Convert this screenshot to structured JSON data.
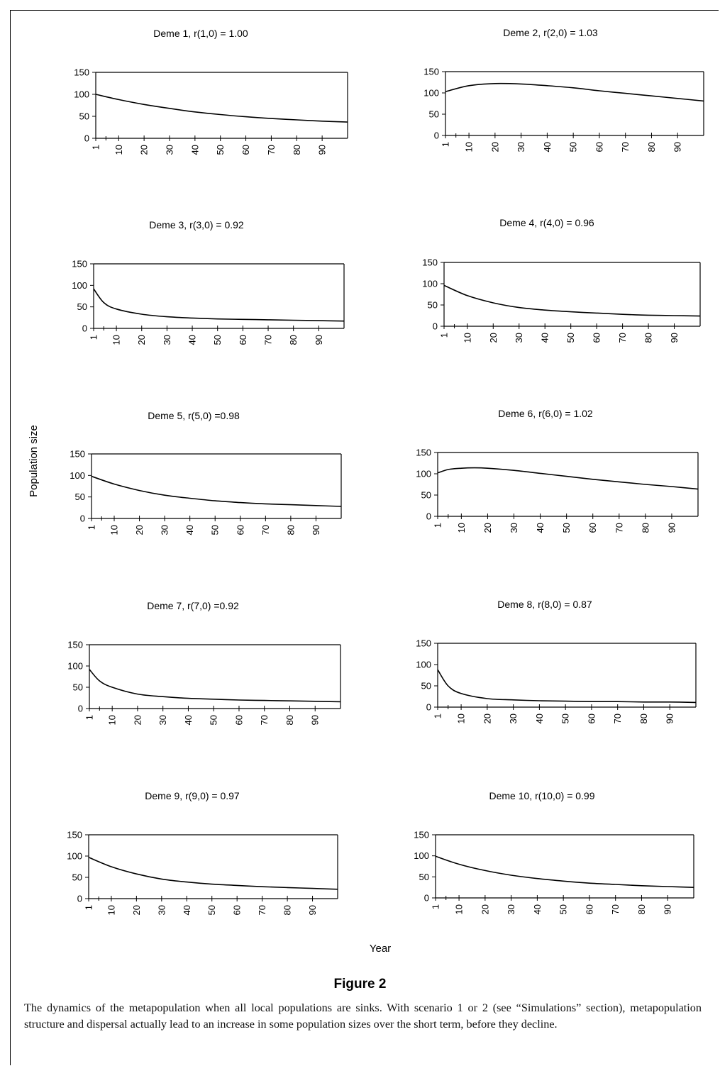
{
  "figure": {
    "title": "Figure 2",
    "caption": "The dynamics of the metapopulation when all local populations are sinks. With scenario 1 or 2 (see “Simulations” section), metapopulation structure and dispersal actually lead to an increase in some population sizes over the short term, before they decline."
  },
  "axes": {
    "ylabel": "Population size",
    "xlabel": "Year",
    "yticks": [
      0,
      50,
      100,
      150
    ],
    "xtick_labels": [
      "1",
      "10",
      "20",
      "30",
      "40",
      "50",
      "60",
      "70",
      "80",
      "90"
    ],
    "xlim": [
      1,
      100
    ],
    "ylim": [
      0,
      150
    ]
  },
  "chart_data": [
    {
      "type": "line",
      "title": "Deme 1, r(1,0) = 1.00",
      "x": [
        1,
        10,
        20,
        30,
        40,
        50,
        60,
        70,
        80,
        90,
        100
      ],
      "y": [
        100,
        88,
        77,
        68,
        60,
        54,
        49,
        45,
        42,
        39,
        37
      ],
      "xlabel": "Year",
      "ylabel": "Population size",
      "ylim": [
        0,
        150
      ]
    },
    {
      "type": "line",
      "title": "Deme 2, r(2,0) = 1.03",
      "x": [
        1,
        10,
        20,
        30,
        40,
        50,
        60,
        70,
        80,
        90,
        100
      ],
      "y": [
        103,
        117,
        122,
        121,
        117,
        112,
        105,
        99,
        93,
        87,
        81
      ],
      "xlabel": "Year",
      "ylabel": "Population size",
      "ylim": [
        0,
        150
      ]
    },
    {
      "type": "line",
      "title": "Deme 3, r(3,0) = 0.92",
      "x": [
        1,
        5,
        10,
        20,
        30,
        40,
        50,
        60,
        70,
        80,
        90,
        100
      ],
      "y": [
        92,
        60,
        45,
        33,
        27,
        24,
        22,
        21,
        20,
        19,
        18,
        17
      ],
      "xlabel": "Year",
      "ylabel": "Population size",
      "ylim": [
        0,
        150
      ]
    },
    {
      "type": "line",
      "title": "Deme 4, r(4,0) = 0.96",
      "x": [
        1,
        10,
        20,
        30,
        40,
        50,
        60,
        70,
        80,
        90,
        100
      ],
      "y": [
        96,
        72,
        55,
        44,
        38,
        34,
        31,
        28,
        26,
        25,
        24
      ],
      "xlabel": "Year",
      "ylabel": "Population size",
      "ylim": [
        0,
        150
      ]
    },
    {
      "type": "line",
      "title": "Deme 5, r(5,0) =0.98",
      "x": [
        1,
        10,
        20,
        30,
        40,
        50,
        60,
        70,
        80,
        90,
        100
      ],
      "y": [
        98,
        80,
        65,
        54,
        47,
        41,
        37,
        34,
        32,
        30,
        28
      ],
      "xlabel": "Year",
      "ylabel": "Population size",
      "ylim": [
        0,
        150
      ]
    },
    {
      "type": "line",
      "title": "Deme 6, r(6,0) = 1.02",
      "x": [
        1,
        5,
        10,
        15,
        20,
        30,
        40,
        50,
        60,
        70,
        80,
        90,
        100
      ],
      "y": [
        102,
        110,
        113,
        114,
        113,
        108,
        101,
        94,
        87,
        81,
        75,
        70,
        64
      ],
      "xlabel": "Year",
      "ylabel": "Population size",
      "ylim": [
        0,
        150
      ]
    },
    {
      "type": "line",
      "title": "Deme 7, r(7,0) =0.92",
      "x": [
        1,
        5,
        10,
        20,
        30,
        40,
        50,
        60,
        70,
        80,
        90,
        100
      ],
      "y": [
        92,
        65,
        50,
        34,
        28,
        24,
        22,
        20,
        19,
        18,
        17,
        16
      ],
      "xlabel": "Year",
      "ylabel": "Population size",
      "ylim": [
        0,
        150
      ]
    },
    {
      "type": "line",
      "title": "Deme 8, r(8,0) = 0.87",
      "x": [
        1,
        5,
        10,
        20,
        30,
        40,
        50,
        60,
        70,
        80,
        90,
        100
      ],
      "y": [
        88,
        50,
        32,
        20,
        17,
        15,
        14,
        13,
        13,
        12,
        12,
        11
      ],
      "xlabel": "Year",
      "ylabel": "Population size",
      "ylim": [
        0,
        150
      ]
    },
    {
      "type": "line",
      "title": "Deme 9, r(9,0) = 0.97",
      "x": [
        1,
        10,
        20,
        30,
        40,
        50,
        60,
        70,
        80,
        90,
        100
      ],
      "y": [
        97,
        75,
        58,
        46,
        39,
        34,
        31,
        28,
        26,
        24,
        22
      ],
      "xlabel": "Year",
      "ylabel": "Population size",
      "ylim": [
        0,
        150
      ]
    },
    {
      "type": "line",
      "title": "Deme 10, r(10,0) = 0.99",
      "x": [
        1,
        10,
        20,
        30,
        40,
        50,
        60,
        70,
        80,
        90,
        100
      ],
      "y": [
        99,
        80,
        65,
        54,
        46,
        40,
        35,
        32,
        29,
        27,
        25
      ],
      "xlabel": "Year",
      "ylabel": "Population size",
      "ylim": [
        0,
        150
      ]
    }
  ]
}
